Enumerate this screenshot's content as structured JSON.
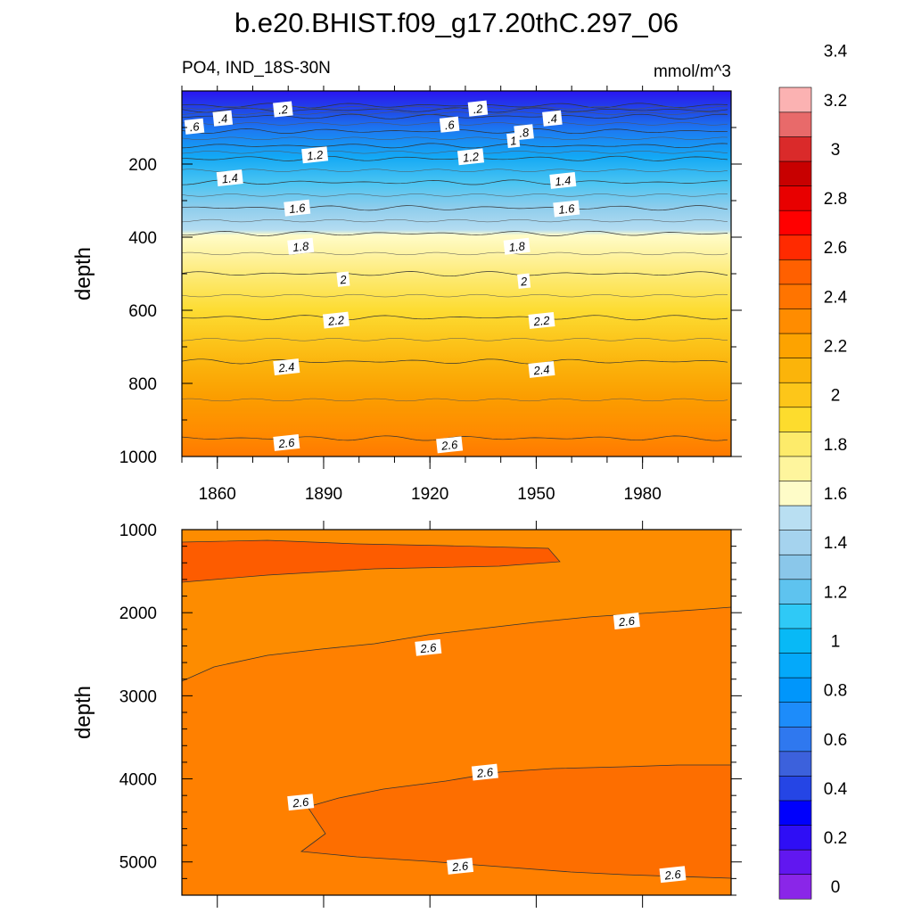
{
  "title": "b.e20.BHIST.f09_g17.20thC.297_06",
  "subtitle_left": "PO4, IND_18S-30N",
  "subtitle_right": "mmol/m^3",
  "chart_data": [
    {
      "type": "contour",
      "panel": "upper",
      "xlim": [
        1850,
        2005
      ],
      "ylim": [
        1000,
        0
      ],
      "ylabel": "depth",
      "xticks": [
        1860,
        1890,
        1920,
        1950,
        1980
      ],
      "yticks": [
        200,
        400,
        600,
        800,
        1000
      ],
      "contour_levels": [
        {
          "value": 0.2,
          "depth": 40
        },
        {
          "value": 0.4,
          "depth": 52
        },
        {
          "value": 0.6,
          "depth": 70
        },
        {
          "value": 0.8,
          "depth": 110
        },
        {
          "value": 1.0,
          "depth": 150
        },
        {
          "value": 1.2,
          "depth": 185
        },
        {
          "value": 1.4,
          "depth": 250
        },
        {
          "value": 1.6,
          "depth": 320
        },
        {
          "value": 1.8,
          "depth": 390
        },
        {
          "value": 2.0,
          "depth": 500
        },
        {
          "value": 2.2,
          "depth": 620
        },
        {
          "value": 2.4,
          "depth": 740
        },
        {
          "value": 2.6,
          "depth": 950
        }
      ],
      "labels": [
        {
          "text": ".2",
          "x": 1875,
          "depth": 50
        },
        {
          "text": ".2",
          "x": 1930,
          "depth": 48
        },
        {
          "text": ".4",
          "x": 1858,
          "depth": 75
        },
        {
          "text": ".6",
          "x": 1850,
          "depth": 97
        },
        {
          "text": ".4",
          "x": 1951,
          "depth": 75
        },
        {
          "text": ".6",
          "x": 1922,
          "depth": 92
        },
        {
          "text": ".8",
          "x": 1943,
          "depth": 113
        },
        {
          "text": "1",
          "x": 1940,
          "depth": 135
        },
        {
          "text": "1.2",
          "x": 1884,
          "depth": 175
        },
        {
          "text": "1.2",
          "x": 1928,
          "depth": 180
        },
        {
          "text": "1.4",
          "x": 1860,
          "depth": 238
        },
        {
          "text": "1.4",
          "x": 1954,
          "depth": 245
        },
        {
          "text": "1.6",
          "x": 1879,
          "depth": 320
        },
        {
          "text": "1.6",
          "x": 1955,
          "depth": 322
        },
        {
          "text": "1.8",
          "x": 1880,
          "depth": 425
        },
        {
          "text": "1.8",
          "x": 1941,
          "depth": 425
        },
        {
          "text": "2",
          "x": 1892,
          "depth": 515
        },
        {
          "text": "2",
          "x": 1943,
          "depth": 520
        },
        {
          "text": "2.2",
          "x": 1890,
          "depth": 627
        },
        {
          "text": "2.2",
          "x": 1948,
          "depth": 628
        },
        {
          "text": "2.4",
          "x": 1876,
          "depth": 755
        },
        {
          "text": "2.4",
          "x": 1948,
          "depth": 762
        },
        {
          "text": "2.6",
          "x": 1876,
          "depth": 962
        },
        {
          "text": "2.6",
          "x": 1922,
          "depth": 968
        }
      ]
    },
    {
      "type": "contour",
      "panel": "lower",
      "xlim": [
        1850,
        2005
      ],
      "ylim": [
        5400,
        1000
      ],
      "ylabel": "depth",
      "yticks": [
        1000,
        2000,
        3000,
        4000,
        5000
      ],
      "contour_levels": [
        {
          "value": 2.6
        }
      ],
      "labels": [
        {
          "text": "2.6",
          "x": 1972,
          "depth": 2100
        },
        {
          "text": "2.6",
          "x": 1916,
          "depth": 2420
        },
        {
          "text": "2.6",
          "x": 1932,
          "depth": 3920
        },
        {
          "text": "2.6",
          "x": 1880,
          "depth": 4280
        },
        {
          "text": "2.6",
          "x": 1925,
          "depth": 5050
        },
        {
          "text": "2.6",
          "x": 1985,
          "depth": 5150
        }
      ]
    }
  ],
  "colorbar": {
    "labels": [
      "0",
      "0.2",
      "0.4",
      "0.6",
      "0.8",
      "1",
      "1.2",
      "1.4",
      "1.6",
      "1.8",
      "2",
      "2.2",
      "2.4",
      "2.6",
      "2.8",
      "3",
      "3.2",
      "3.4"
    ],
    "colors": [
      "#8a26e8",
      "#6117f0",
      "#2f0ef5",
      "#0000fc",
      "#2545e5",
      "#3c61dc",
      "#2f78ef",
      "#1d8cfa",
      "#0096fb",
      "#04a9fa",
      "#08b9f6",
      "#2fc9f6",
      "#5ec3ef",
      "#8ac7ea",
      "#a5d3ee",
      "#b9dff2",
      "#fefcc8",
      "#fef59d",
      "#fdeb6a",
      "#fddc2d",
      "#fdc619",
      "#fbb40a",
      "#fda300",
      "#ff8c00",
      "#ff7400",
      "#ff6000",
      "#ff2a00",
      "#ff0000",
      "#e80000",
      "#c80000",
      "#da2a2a",
      "#e86a6a",
      "#fbb2b2"
    ]
  }
}
